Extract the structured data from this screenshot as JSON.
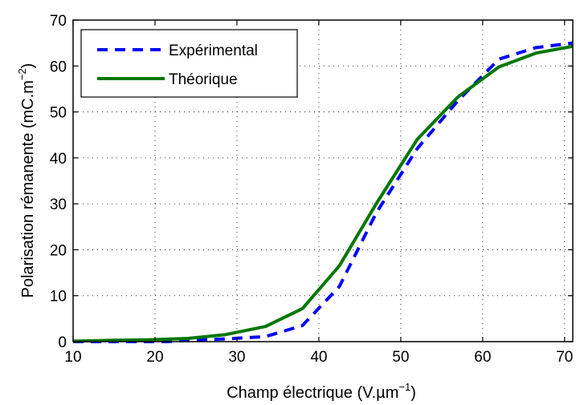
{
  "chart_data": {
    "type": "line",
    "xlabel": "Champ électrique (V.µm",
    "xlabel_sup": "−1",
    "xlabel_end": ")",
    "ylabel": "Polarisation rémanente (mC.m",
    "ylabel_sup": "−2",
    "ylabel_end": ")",
    "xlim": [
      10,
      71
    ],
    "ylim": [
      0,
      70
    ],
    "xticks": [
      10,
      20,
      30,
      40,
      50,
      60,
      70
    ],
    "yticks": [
      0,
      10,
      20,
      30,
      40,
      50,
      60,
      70
    ],
    "grid": true,
    "legend_position": "top-left",
    "series": [
      {
        "name": "Expérimental",
        "color": "#0000ff",
        "style": "dashed",
        "x": [
          10,
          15,
          19,
          24,
          28.5,
          33.5,
          38,
          42.5,
          47,
          52,
          57,
          62,
          66.5,
          71
        ],
        "y": [
          -0.5,
          -0.5,
          -0.3,
          0.3,
          0.6,
          1.1,
          3.5,
          12,
          28,
          42,
          52.5,
          61.5,
          64,
          65
        ]
      },
      {
        "name": "Théorique",
        "color": "#007700",
        "style": "solid",
        "x": [
          10,
          15,
          19,
          24,
          28.5,
          33.5,
          38,
          42.5,
          47,
          52,
          57,
          62,
          66.5,
          71
        ],
        "y": [
          0.1,
          0.3,
          0.4,
          0.7,
          1.5,
          3.3,
          7.2,
          16.5,
          30,
          44,
          53.3,
          59.8,
          62.8,
          64.3
        ]
      }
    ]
  }
}
